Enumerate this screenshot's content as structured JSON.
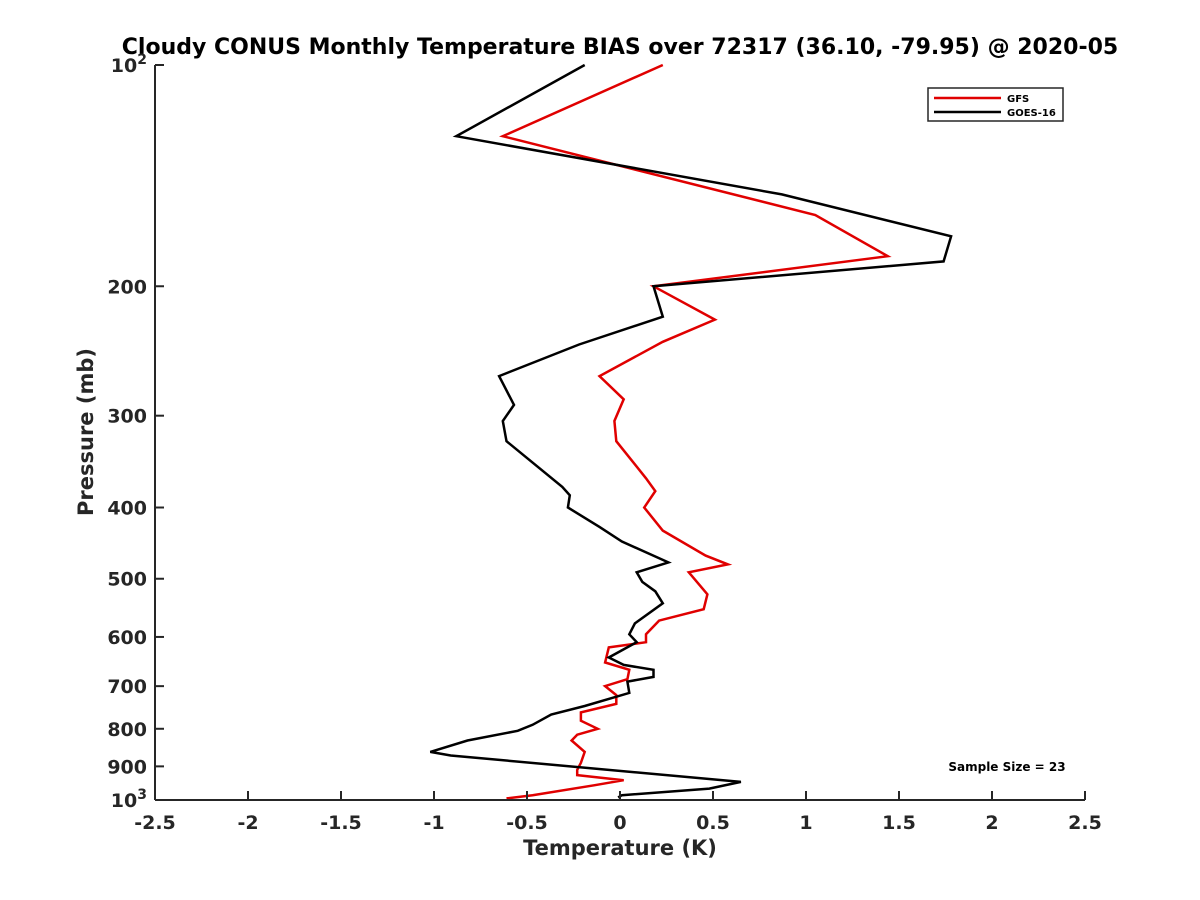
{
  "chart_data": {
    "type": "line",
    "title": "Cloudy CONUS Monthly Temperature BIAS over 72317 (36.10, -79.95) @ 2020-05",
    "xlabel": "Temperature (K)",
    "ylabel": "Pressure (mb)",
    "xlim": [
      -2.5,
      2.5
    ],
    "ylim": [
      100,
      1000
    ],
    "yscale": "log",
    "y_reversed": true,
    "x_ticks": [
      "-2.5",
      "-2",
      "-1.5",
      "-1",
      "-0.5",
      "0",
      "0.5",
      "1",
      "1.5",
      "2",
      "2.5"
    ],
    "y_ticks": [
      {
        "value": 100,
        "label": "10",
        "sup": "2"
      },
      {
        "value": 200,
        "label": "200"
      },
      {
        "value": 300,
        "label": "300"
      },
      {
        "value": 400,
        "label": "400"
      },
      {
        "value": 500,
        "label": "500"
      },
      {
        "value": 600,
        "label": "600"
      },
      {
        "value": 700,
        "label": "700"
      },
      {
        "value": 800,
        "label": "800"
      },
      {
        "value": 900,
        "label": "900"
      },
      {
        "value": 1000,
        "label": "10",
        "sup": "3"
      }
    ],
    "grid": false,
    "legend_position": "top-right",
    "annotation": "Sample Size = 23",
    "series": [
      {
        "name": "GFS",
        "color": "#e00000",
        "points": [
          [
            0.23,
            100
          ],
          [
            -0.63,
            125
          ],
          [
            1.05,
            160
          ],
          [
            1.44,
            182
          ],
          [
            0.18,
            200
          ],
          [
            0.51,
            222
          ],
          [
            0.23,
            238
          ],
          [
            -0.11,
            265
          ],
          [
            0.02,
            285
          ],
          [
            -0.03,
            305
          ],
          [
            -0.02,
            325
          ],
          [
            0.14,
            365
          ],
          [
            0.19,
            380
          ],
          [
            0.13,
            400
          ],
          [
            0.23,
            430
          ],
          [
            0.46,
            465
          ],
          [
            0.58,
            478
          ],
          [
            0.37,
            490
          ],
          [
            0.47,
            525
          ],
          [
            0.45,
            550
          ],
          [
            0.21,
            570
          ],
          [
            0.14,
            595
          ],
          [
            0.14,
            610
          ],
          [
            -0.06,
            620
          ],
          [
            -0.08,
            650
          ],
          [
            0.05,
            665
          ],
          [
            0.04,
            685
          ],
          [
            -0.08,
            700
          ],
          [
            -0.02,
            720
          ],
          [
            -0.02,
            740
          ],
          [
            -0.21,
            760
          ],
          [
            -0.21,
            780
          ],
          [
            -0.12,
            800
          ],
          [
            -0.23,
            815
          ],
          [
            -0.26,
            830
          ],
          [
            -0.19,
            860
          ],
          [
            -0.21,
            890
          ],
          [
            -0.23,
            910
          ],
          [
            -0.23,
            925
          ],
          [
            0.02,
            940
          ],
          [
            -0.14,
            955
          ],
          [
            -0.47,
            985
          ],
          [
            -0.61,
            995
          ]
        ]
      },
      {
        "name": "GOES-16",
        "color": "#000000",
        "points": [
          [
            -0.19,
            100
          ],
          [
            -0.88,
            125
          ],
          [
            0.87,
            150
          ],
          [
            1.78,
            171
          ],
          [
            1.74,
            185
          ],
          [
            0.18,
            200
          ],
          [
            0.23,
            220
          ],
          [
            -0.22,
            240
          ],
          [
            -0.65,
            265
          ],
          [
            -0.57,
            290
          ],
          [
            -0.63,
            305
          ],
          [
            -0.61,
            325
          ],
          [
            -0.31,
            375
          ],
          [
            -0.27,
            385
          ],
          [
            -0.28,
            400
          ],
          [
            -0.11,
            425
          ],
          [
            0.01,
            445
          ],
          [
            0.26,
            475
          ],
          [
            0.09,
            490
          ],
          [
            0.12,
            505
          ],
          [
            0.19,
            520
          ],
          [
            0.23,
            540
          ],
          [
            0.08,
            575
          ],
          [
            0.05,
            595
          ],
          [
            0.09,
            610
          ],
          [
            -0.06,
            640
          ],
          [
            0.02,
            655
          ],
          [
            0.18,
            665
          ],
          [
            0.18,
            680
          ],
          [
            0.04,
            690
          ],
          [
            0.05,
            715
          ],
          [
            -0.19,
            745
          ],
          [
            -0.37,
            765
          ],
          [
            -0.47,
            790
          ],
          [
            -0.55,
            805
          ],
          [
            -0.82,
            830
          ],
          [
            -1.02,
            860
          ],
          [
            -0.91,
            870
          ],
          [
            0.65,
            945
          ],
          [
            0.48,
            965
          ],
          [
            0.01,
            985
          ],
          [
            -0.01,
            992
          ]
        ]
      }
    ]
  }
}
